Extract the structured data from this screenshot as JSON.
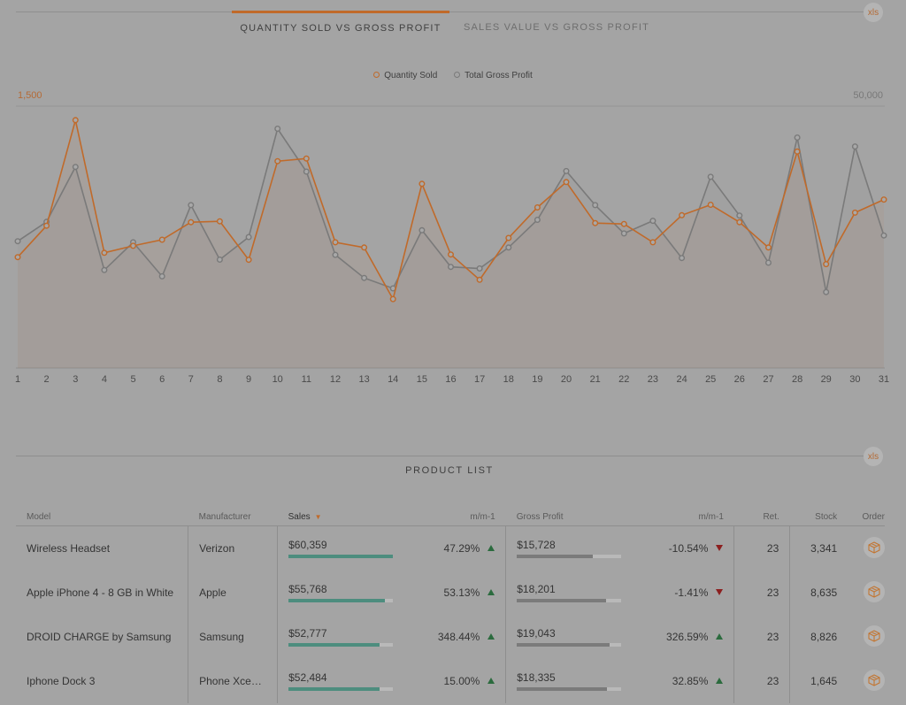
{
  "export_label": "xls",
  "tabs": [
    {
      "label": "QUANTITY SOLD VS GROSS PROFIT",
      "active": true
    },
    {
      "label": "SALES VALUE VS GROSS PROFIT",
      "active": false
    }
  ],
  "chart": {
    "legend": [
      "Quantity Sold",
      "Total Gross Profit"
    ],
    "left_axis_max_label": "1,500",
    "right_axis_max_label": "50,000"
  },
  "chart_data": {
    "type": "line",
    "x": [
      1,
      2,
      3,
      4,
      5,
      6,
      7,
      8,
      9,
      10,
      11,
      12,
      13,
      14,
      15,
      16,
      17,
      18,
      19,
      20,
      21,
      22,
      23,
      24,
      25,
      26,
      27,
      28,
      29,
      30,
      31
    ],
    "series": [
      {
        "name": "Quantity Sold",
        "axis": "left",
        "color": "#c06a2a",
        "values": [
          635,
          815,
          1420,
          660,
          700,
          735,
          835,
          840,
          620,
          1185,
          1200,
          720,
          690,
          395,
          1055,
          650,
          505,
          745,
          920,
          1065,
          830,
          825,
          720,
          875,
          935,
          835,
          690,
          1240,
          595,
          890,
          965
        ]
      },
      {
        "name": "Total Gross Profit",
        "axis": "right",
        "color": "#7a7a7a",
        "values": [
          24200,
          27900,
          38400,
          18700,
          24000,
          17500,
          31100,
          20700,
          25000,
          45700,
          37500,
          21600,
          17200,
          15200,
          26300,
          19300,
          19000,
          23000,
          28300,
          37600,
          31100,
          25700,
          28100,
          21000,
          36500,
          29100,
          20100,
          44000,
          14500,
          42300,
          25300
        ]
      }
    ],
    "y_left_max": 1500,
    "y_right_max": 50000,
    "xlabel": "",
    "ylabel": "",
    "legend_position": "top-center",
    "area_fill": true
  },
  "product_list": {
    "title": "PRODUCT LIST",
    "columns": {
      "model": "Model",
      "manufacturer": "Manufacturer",
      "sales": "Sales",
      "sales_mm": "m/m-1",
      "gross_profit": "Gross Profit",
      "gp_mm": "m/m-1",
      "ret": "Ret.",
      "stock": "Stock",
      "order": "Order"
    },
    "rows": [
      {
        "model": "Wireless Headset",
        "manufacturer": "Verizon",
        "sales": "$60,359",
        "sales_bar": 1.0,
        "sales_mm": "47.29%",
        "sales_trend": "up",
        "gross_profit": "$15,728",
        "gp_bar": 0.73,
        "gp_mm": "-10.54%",
        "gp_trend": "down",
        "ret": "23",
        "stock": "3,341"
      },
      {
        "model": "Apple iPhone 4 - 8 GB in White",
        "manufacturer": "Apple",
        "sales": "$55,768",
        "sales_bar": 0.92,
        "sales_mm": "53.13%",
        "sales_trend": "up",
        "gross_profit": "$18,201",
        "gp_bar": 0.85,
        "gp_mm": "-1.41%",
        "gp_trend": "down",
        "ret": "23",
        "stock": "8,635"
      },
      {
        "model": "DROID CHARGE by Samsung",
        "manufacturer": "Samsung",
        "sales": "$52,777",
        "sales_bar": 0.87,
        "sales_mm": "348.44%",
        "sales_trend": "up",
        "gross_profit": "$19,043",
        "gp_bar": 0.89,
        "gp_mm": "326.59%",
        "gp_trend": "up",
        "ret": "23",
        "stock": "8,826"
      },
      {
        "model": "Iphone Dock 3",
        "manufacturer": "Phone Xcessories",
        "sales": "$52,484",
        "sales_bar": 0.87,
        "sales_mm": "15.00%",
        "sales_trend": "up",
        "gross_profit": "$18,335",
        "gp_bar": 0.86,
        "gp_mm": "32.85%",
        "gp_trend": "up",
        "ret": "23",
        "stock": "1,645"
      }
    ]
  }
}
